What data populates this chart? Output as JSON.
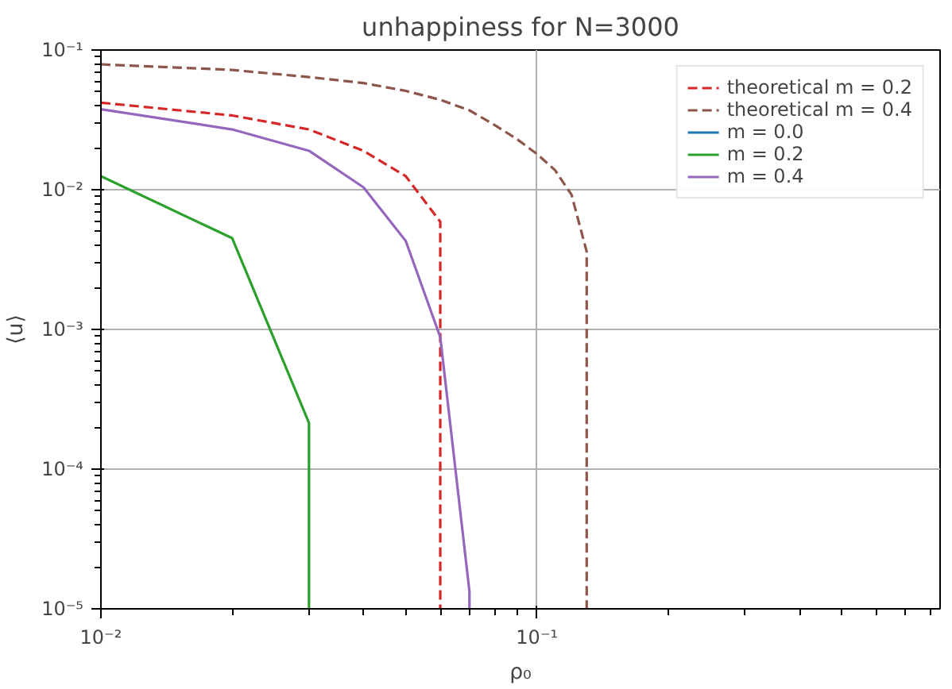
{
  "chart_data": {
    "type": "line",
    "title": "unhappiness for N=3000",
    "xlabel": "ρ₀",
    "ylabel": "⟨u⟩",
    "log": "xy",
    "grid": true,
    "legend": "top right",
    "xlim": [
      0.01,
      0.84
    ],
    "ylim": [
      1e-05,
      0.1
    ],
    "xticks": [
      {
        "value": 0.01,
        "label": "10⁻²"
      },
      {
        "value": 0.1,
        "label": "10⁻¹"
      }
    ],
    "yticks": [
      {
        "value": 1e-05,
        "label": "10⁻⁵"
      },
      {
        "value": 0.0001,
        "label": "10⁻⁴"
      },
      {
        "value": 0.001,
        "label": "10⁻³"
      },
      {
        "value": 0.01,
        "label": "10⁻²"
      },
      {
        "value": 0.1,
        "label": "10⁻¹"
      }
    ],
    "series": [
      {
        "name": "theoretical m = 0.2",
        "color": "#d62728",
        "line_style": "dashed",
        "x": [
          0.01,
          0.02,
          0.03,
          0.04,
          0.05,
          0.06,
          0.06
        ],
        "values": [
          0.042,
          0.034,
          0.027,
          0.019,
          0.0125,
          0.0059,
          1e-05
        ]
      },
      {
        "name": "theoretical m = 0.4",
        "color": "#8c564b",
        "line_style": "dashed",
        "x": [
          0.01,
          0.02,
          0.03,
          0.04,
          0.05,
          0.06,
          0.07,
          0.08,
          0.09,
          0.1,
          0.11,
          0.12,
          0.13,
          0.13
        ],
        "values": [
          0.079,
          0.072,
          0.064,
          0.058,
          0.051,
          0.044,
          0.037,
          0.029,
          0.023,
          0.018,
          0.0138,
          0.0092,
          0.0036,
          1e-05
        ]
      },
      {
        "name": "m = 0.0",
        "color": "#1f77b4",
        "line_style": "solid"
      },
      {
        "name": "m = 0.2",
        "color": "#2ca02c",
        "line_style": "solid",
        "x": [
          0.01,
          0.02,
          0.03,
          0.03
        ],
        "values": [
          0.0125,
          0.0045,
          0.000214,
          1e-05
        ]
      },
      {
        "name": "m = 0.4",
        "color": "#9467bd",
        "line_style": "solid",
        "x": [
          0.01,
          0.02,
          0.03,
          0.04,
          0.05,
          0.06,
          0.07,
          0.07
        ],
        "values": [
          0.0377,
          0.027,
          0.019,
          0.0104,
          0.0043,
          0.00088,
          1.33e-05,
          1e-05
        ]
      }
    ]
  }
}
